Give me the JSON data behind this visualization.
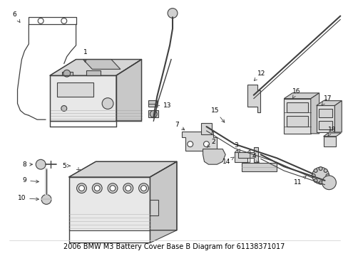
{
  "title": "2006 BMW M3 Battery Cover Base B Diagram for 61138371017",
  "bg_color": "#ffffff",
  "line_color": "#404040",
  "label_color": "#000000",
  "font_size": 6.5,
  "title_font_size": 7.0,
  "figsize": [
    4.89,
    3.6
  ],
  "dpi": 100
}
